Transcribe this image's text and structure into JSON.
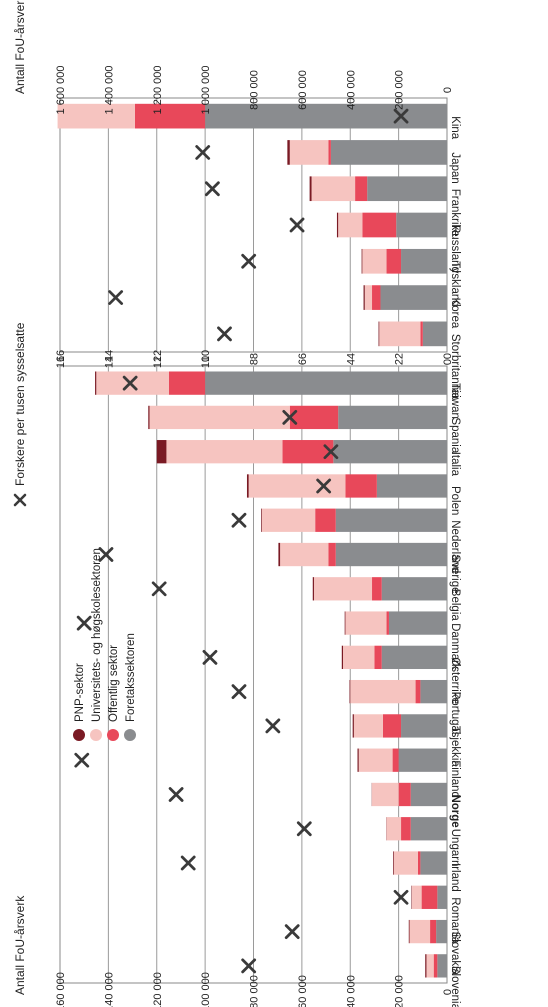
{
  "legend": {
    "items": [
      {
        "label": "PNP-sektor",
        "color": "#7a1a24"
      },
      {
        "label": "Universitets- og høgskolesektoren",
        "color": "#f6c4c0"
      },
      {
        "label": "Offentlig sektor",
        "color": "#e8485a"
      },
      {
        "label": "Foretakssektoren",
        "color": "#8a8c8f"
      }
    ],
    "marker_label": "Forskere per tusen sysselsatte",
    "marker_color": "#3a3a3a"
  },
  "chart_data": [
    {
      "type": "bar",
      "stacked": true,
      "orientation": "rotated-90",
      "left_axis_label": "Antall FoU-årsverk",
      "left_axis_ticks": [
        "160 000",
        "140 000",
        "120 000",
        "100 000",
        "80 000",
        "60 000",
        "40 000",
        "20 000",
        "0"
      ],
      "left_axis_range": [
        0,
        160000
      ],
      "right_axis_ticks": [
        "16",
        "14",
        "12",
        "10",
        "8",
        "6",
        "4",
        "2",
        "0"
      ],
      "right_axis_range": [
        0,
        16
      ],
      "categories": [
        "Slovenia",
        "Slovakia",
        "Romania",
        "Irland",
        "Ungarn",
        "Norge",
        "Finland",
        "Tsjekkia",
        "Portugal",
        "Østerrike",
        "Danmark",
        "Belgia",
        "Sverige",
        "Nederland",
        "Polen",
        "Italia",
        "Spania",
        "Taiwan"
      ],
      "bold_category": "Norge",
      "series": [
        {
          "name": "Foretakssektoren",
          "values": [
            4000,
            4500,
            4000,
            11000,
            15000,
            15000,
            20000,
            19000,
            11000,
            27000,
            24000,
            27000,
            46000,
            46000,
            29000,
            47000,
            45000,
            100000
          ]
        },
        {
          "name": "Offentlig sektor",
          "values": [
            1500,
            2500,
            6500,
            1000,
            4000,
            5000,
            2500,
            7500,
            2000,
            3000,
            1000,
            4000,
            3000,
            8500,
            13000,
            21000,
            20000,
            15000
          ]
        },
        {
          "name": "Universitets- og høgskolesektoren",
          "values": [
            3000,
            8500,
            4000,
            10000,
            6000,
            11000,
            14000,
            12000,
            27000,
            13000,
            17000,
            24000,
            20000,
            22000,
            40000,
            48000,
            58000,
            30000
          ]
        },
        {
          "name": "PNP-sektor",
          "values": [
            500,
            300,
            200,
            300,
            100,
            100,
            500,
            500,
            300,
            500,
            300,
            500,
            700,
            300,
            700,
            4000,
            500,
            500
          ]
        }
      ],
      "markers": {
        "name": "Forskere per tusen sysselsatte",
        "values": [
          8.2,
          6.4,
          1.9,
          10.7,
          5.9,
          11.2,
          15.1,
          7.2,
          8.6,
          9.8,
          15.0,
          11.9,
          14.1,
          8.6,
          5.1,
          4.8,
          6.5,
          13.1
        ]
      }
    },
    {
      "type": "bar",
      "stacked": true,
      "orientation": "rotated-90",
      "left_axis_ticks": [
        "16",
        "14",
        "12",
        "10",
        "8",
        "6",
        "4",
        "2",
        "0"
      ],
      "left_axis_range": [
        0,
        16
      ],
      "right_axis_label": "Antall FoU-årsverk",
      "right_axis_ticks": [
        "1 600 000",
        "1 400 000",
        "1 200 000",
        "1 000 000",
        "800 000",
        "600 000",
        "400 000",
        "200 000",
        "0"
      ],
      "right_axis_range": [
        0,
        1600000
      ],
      "categories": [
        "Storbritannia",
        "Korea",
        "Tyskland",
        "Russland",
        "Frankrike",
        "Japan",
        "Kina"
      ],
      "series": [
        {
          "name": "Foretakssektoren",
          "values": [
            100000,
            275000,
            190000,
            210000,
            330000,
            480000,
            1000000
          ]
        },
        {
          "name": "Offentlig sektor",
          "values": [
            10000,
            35000,
            60000,
            140000,
            50000,
            10000,
            290000
          ]
        },
        {
          "name": "Universitets- og høgskolesektoren",
          "values": [
            170000,
            30000,
            100000,
            100000,
            180000,
            160000,
            320000
          ]
        },
        {
          "name": "PNP-sektor",
          "values": [
            3000,
            5000,
            3000,
            5000,
            8000,
            10000,
            0
          ]
        }
      ],
      "markers": {
        "name": "Forskere per tusen sysselsatte",
        "values": [
          9.2,
          13.7,
          8.2,
          6.2,
          9.7,
          10.1,
          1.9
        ]
      }
    }
  ]
}
